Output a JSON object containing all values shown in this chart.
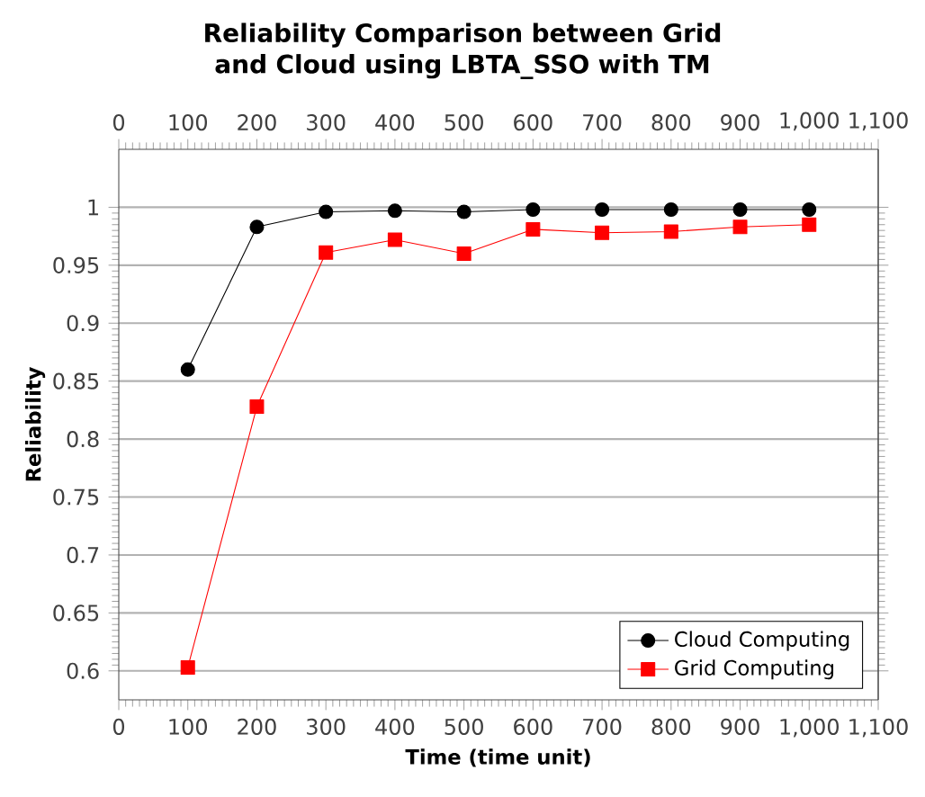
{
  "chart_data": {
    "type": "line",
    "title": "Reliability Comparison between Grid and Cloud using LBTA_SSO with TM",
    "xlabel": "Time (time unit)",
    "ylabel": "Reliability",
    "x": [
      100,
      200,
      300,
      400,
      500,
      600,
      700,
      800,
      900,
      1000
    ],
    "series": [
      {
        "name": "Cloud Computing",
        "color": "#000000",
        "marker": "circle",
        "values": [
          0.86,
          0.983,
          0.996,
          0.997,
          0.996,
          0.998,
          0.998,
          0.998,
          0.998,
          0.998
        ]
      },
      {
        "name": "Grid Computing",
        "color": "#ff0000",
        "marker": "square",
        "values": [
          0.603,
          0.828,
          0.961,
          0.972,
          0.96,
          0.981,
          0.978,
          0.979,
          0.983,
          0.985
        ]
      }
    ],
    "xlim": [
      0,
      1100
    ],
    "ylim": [
      0.575,
      1.05
    ],
    "xticks": [
      0,
      100,
      200,
      300,
      400,
      500,
      600,
      700,
      800,
      900,
      {
        "value": 1000,
        "label": "1,000"
      },
      {
        "value": 1100,
        "label": "1,100"
      }
    ],
    "x2lim": [
      0,
      1100
    ],
    "x2ticks": [
      0,
      100,
      200,
      300,
      400,
      500,
      600,
      700,
      800,
      900,
      {
        "value": 1000,
        "label": "1,000"
      },
      {
        "value": 1100,
        "label": "1,100"
      }
    ],
    "yticks": [
      0.6,
      0.65,
      0.7,
      0.75,
      0.8,
      0.85,
      0.9,
      0.95,
      1
    ],
    "grid": "y",
    "legend": "bottom right"
  }
}
